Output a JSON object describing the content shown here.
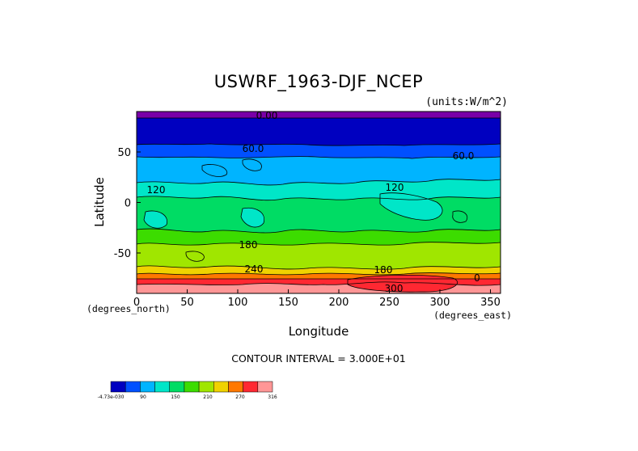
{
  "chart_data": {
    "type": "heatmap",
    "title": "USWRF_1963-DJF_NCEP",
    "units_label": "(units:W/m^2)",
    "xlabel": "Longitude",
    "ylabel": "Latitude",
    "x_sublabel": "(degrees_east)",
    "y_sublabel": "(degrees_north)",
    "xlim": [
      0,
      360
    ],
    "ylim": [
      -90,
      90
    ],
    "x_ticks": [
      0,
      50,
      100,
      150,
      200,
      250,
      300,
      350
    ],
    "y_ticks": [
      50,
      0,
      -50
    ],
    "contour_interval_text": "CONTOUR INTERVAL = 3.000E+01",
    "contour_interval": 30,
    "colorbar": {
      "colors": [
        "#0000c0",
        "#0050ff",
        "#00b4ff",
        "#00e6c8",
        "#00dc64",
        "#3cdc00",
        "#a0e600",
        "#f0d200",
        "#ff7800",
        "#ff2832",
        "#ff9696"
      ],
      "labels": [
        "-4.73e-030",
        "90",
        "150",
        "210",
        "270",
        "316"
      ]
    },
    "contour_labels": [
      "0.00",
      "60.0",
      "60.0",
      "120",
      "120",
      "180",
      "180",
      "240",
      "300",
      "0"
    ],
    "latitude_bands": [
      {
        "lat_range": [
          85,
          90
        ],
        "value_range": "< 0"
      },
      {
        "lat_range": [
          57,
          85
        ],
        "value_range": "0-30"
      },
      {
        "lat_range": [
          45,
          57
        ],
        "value_range": "30-60"
      },
      {
        "lat_range": [
          20,
          45
        ],
        "value_range": "60-90"
      },
      {
        "lat_range": [
          5,
          20
        ],
        "value_range": "90-120"
      },
      {
        "lat_range": [
          -30,
          5
        ],
        "value_range": "120-150"
      },
      {
        "lat_range": [
          -45,
          -30
        ],
        "value_range": "150-180"
      },
      {
        "lat_range": [
          -65,
          -45
        ],
        "value_range": "180-210"
      },
      {
        "lat_range": [
          -70,
          -65
        ],
        "value_range": "210-240"
      },
      {
        "lat_range": [
          -73,
          -70
        ],
        "value_range": "240-270"
      },
      {
        "lat_range": [
          -77,
          -73
        ],
        "value_range": "270-300"
      },
      {
        "lat_range": [
          -83,
          -77
        ],
        "value_range": "300-316"
      },
      {
        "lat_range": [
          -90,
          -83
        ],
        "value_range": "> 316"
      }
    ]
  }
}
